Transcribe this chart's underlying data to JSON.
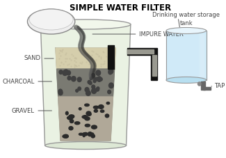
{
  "title": "SIMPLE WATER FILTER",
  "title_fontsize": 8.5,
  "title_fontweight": "bold",
  "labels": {
    "impure_water": "IMPURE WATER",
    "sand": "SAND",
    "charcoal": "CHARCOAL",
    "gravel": "GRAVEL",
    "drinking_tank": "Drinking water storage\ntank",
    "tap": "TAP"
  },
  "colors": {
    "background": "#ffffff",
    "main_container_fill": "#eaf2e3",
    "main_container_edge": "#999999",
    "inner_box_fill": "#dde5d5",
    "inner_box_edge": "#777777",
    "sand_fill": "#d5ceac",
    "charcoal_fill": "#7a7a72",
    "gravel_fill": "#b0a898",
    "gravel_dots": "#2a2a2a",
    "pipe_color": "#111111",
    "water_stream": "#555555",
    "storage_tank_fill": "#d0eaf8",
    "storage_tank_edge": "#999999",
    "funnel_fill": "#eeeeee",
    "funnel_edge": "#888888",
    "tap_color": "#555555",
    "label_color": "#333333"
  },
  "label_fontsize": 6.0
}
